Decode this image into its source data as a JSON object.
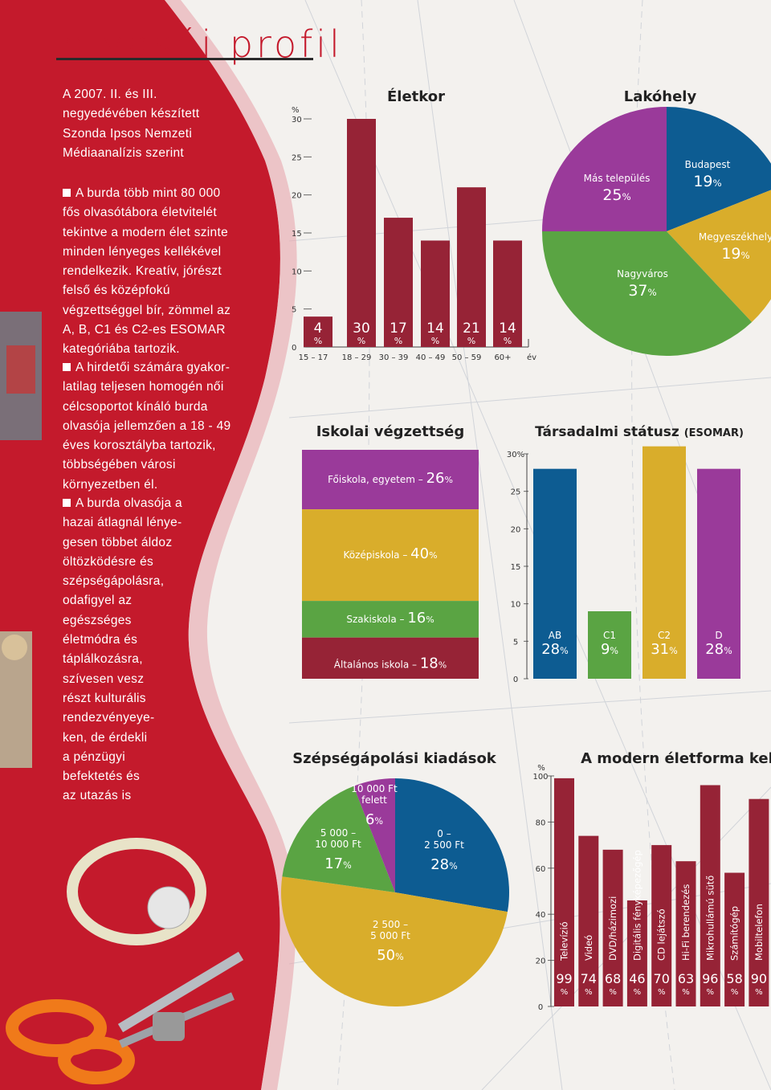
{
  "page_title": "olvasói profil",
  "intro": [
    "A 2007. II. és III.",
    "negyedévében készített",
    "Szonda Ipsos Nemzeti",
    "Médiaanalízis szerint"
  ],
  "paragraphs": [
    {
      "lines": [
        "A burda több mint 80 000",
        "fős olvasótábora életvitelét",
        "tekintve a modern élet szinte",
        "minden lényeges kellékével",
        "rendelkezik. Kreatív, jórészt",
        "felső és középfokú",
        "végzettséggel bír, zömmel az",
        "A, B, C1 és C2-es ESOMAR",
        "kategóriába tartozik."
      ]
    },
    {
      "lines": [
        "A hirdetői számára gyakor-",
        "latilag teljesen homogén női",
        "célcsoportot kínáló burda",
        "olvasója jellemzően a 18 - 49",
        "éves korosztályba tartozik,",
        "többségében városi",
        "környezetben él."
      ]
    },
    {
      "lines": [
        "A burda olvasója a",
        "hazai átlagnál lénye-",
        "gesen többet áldoz",
        "öltözködésre és",
        "szépségápolásra,",
        "odafigyel az",
        "egészséges",
        "életmódra és",
        "táplálkozásra,",
        "szívesen vesz",
        "részt kulturális",
        "rendezvényeye-",
        "ken, de érdekli",
        "a pénzügyi",
        "befektetés és",
        "az utazás is"
      ]
    }
  ],
  "colors": {
    "red": "#c41a2c",
    "bar": "#962336",
    "purple": "#9a3a9a",
    "blue": "#0d5c92",
    "yellow": "#d9ad2b",
    "green": "#5aa443"
  },
  "chart_data": [
    {
      "type": "bar",
      "title": "Életkor",
      "ylabel": "%",
      "xlabel": "év",
      "categories": [
        "15 – 17",
        "18 – 29",
        "30 – 39",
        "40 – 49",
        "50 – 59",
        "60+"
      ],
      "values": [
        4,
        30,
        17,
        14,
        21,
        14
      ],
      "ylim": [
        0,
        30
      ],
      "yticks": [
        "0",
        "5",
        "10",
        "15",
        "20",
        "25",
        "30"
      ],
      "unit_label": "%"
    },
    {
      "type": "pie",
      "title": "Lakóhely",
      "slices": [
        {
          "label": "Budapest",
          "value": 19,
          "color": "#0d5c92"
        },
        {
          "label": "Megyeszékhely",
          "value": 19,
          "color": "#d9ad2b"
        },
        {
          "label": "Nagyváros",
          "value": 37,
          "color": "#5aa443"
        },
        {
          "label": "Más település",
          "value": 25,
          "color": "#9a3a9a"
        }
      ],
      "unit_label": "%"
    },
    {
      "type": "bar",
      "title": "Iskolai végzettség",
      "stacked": true,
      "segments": [
        {
          "label": "Főiskola, egyetem –",
          "value": 26,
          "color": "#9a3a9a"
        },
        {
          "label": "Középiskola –",
          "value": 40,
          "color": "#d9ad2b"
        },
        {
          "label": "Szakiskola –",
          "value": 16,
          "color": "#5aa443"
        },
        {
          "label": "Általános iskola –",
          "value": 18,
          "color": "#962336"
        }
      ],
      "unit_label": "%"
    },
    {
      "type": "bar",
      "title": "Társadalmi státusz",
      "title_suffix": "(ESOMAR)",
      "categories": [
        "AB",
        "C1",
        "C2",
        "D"
      ],
      "values": [
        28,
        9,
        31,
        28
      ],
      "colors": [
        "#0d5c92",
        "#5aa443",
        "#d9ad2b",
        "#9a3a9a"
      ],
      "ylim": [
        0,
        30
      ],
      "yticks": [
        "0",
        "5",
        "10",
        "15",
        "20",
        "25",
        "30%"
      ],
      "unit_label": "%"
    },
    {
      "type": "pie",
      "title": "Szépségápolási kiadások",
      "slices": [
        {
          "label": [
            "0 –",
            "2 500 Ft"
          ],
          "value": 28,
          "color": "#0d5c92"
        },
        {
          "label": [
            "2 500 –",
            "5 000 Ft"
          ],
          "value": 50,
          "color": "#d9ad2b"
        },
        {
          "label": [
            "5 000 –",
            "10 000 Ft"
          ],
          "value": 17,
          "color": "#5aa443"
        },
        {
          "label": [
            "10 000 Ft",
            "felett"
          ],
          "value": 6,
          "color": "#9a3a9a"
        }
      ],
      "unit_label": "%"
    },
    {
      "type": "bar",
      "title": "A modern életforma kell",
      "ylabel": "%",
      "categories": [
        "Televízió",
        "Videó",
        "DVD/házimozi",
        "Digitális fényképezőgép",
        "CD lejátszó",
        "Hi-Fi berendezés",
        "Mikrohullámú sütő",
        "Számítógép",
        "Mobiltelefon"
      ],
      "values": [
        99,
        74,
        68,
        46,
        70,
        63,
        96,
        58,
        90
      ],
      "ylim": [
        0,
        100
      ],
      "yticks": [
        "0",
        "20",
        "40",
        "60",
        "80",
        "100"
      ],
      "unit_label": "%"
    }
  ]
}
